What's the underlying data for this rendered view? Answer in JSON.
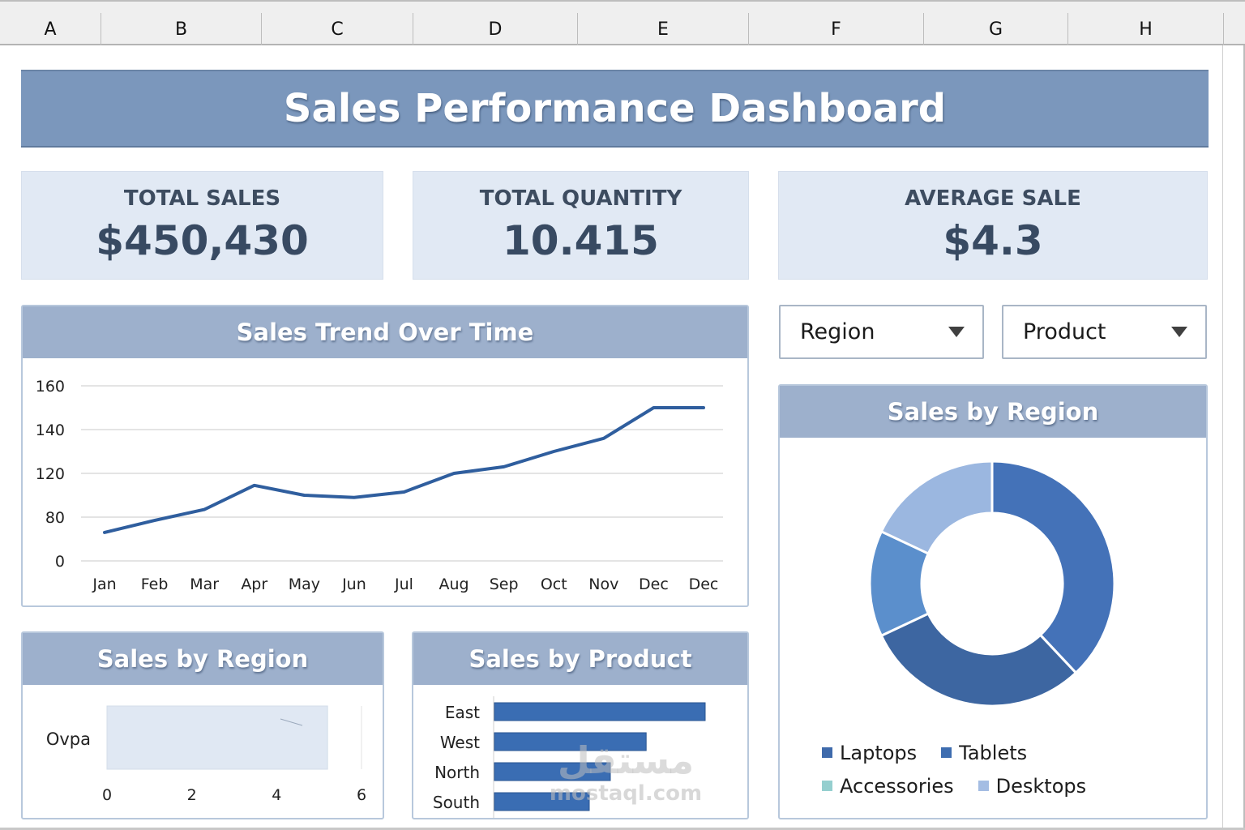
{
  "spreadsheet": {
    "columns": [
      "A",
      "B",
      "C",
      "D",
      "E",
      "F",
      "G",
      "H"
    ]
  },
  "dashboard": {
    "title": "Sales Performance Dashboard",
    "colors": {
      "banner": "#7b97bc",
      "panel_header": "#9db0cc",
      "kpi_background": "#e1e9f4",
      "kpi_text": "#384a62",
      "line": "#2f5e9e",
      "bar": "#3a6db3"
    },
    "kpis": [
      {
        "label": "TOTAL SALES",
        "value": "$450,430"
      },
      {
        "label": "TOTAL QUANTITY",
        "value": "10.415"
      },
      {
        "label": "AVERAGE SALE",
        "value": "$4.3"
      }
    ],
    "filters": {
      "region": {
        "label": "Region",
        "icon": "caret-down-icon"
      },
      "product": {
        "label": "Product",
        "icon": "caret-down-icon"
      }
    },
    "watermark": {
      "arabic": "مستقل",
      "latin": "mostaql.com"
    }
  },
  "chart_data": [
    {
      "id": "sales-trend",
      "type": "line",
      "title": "Sales Trend Over Time",
      "categories": [
        "Jan",
        "Feb",
        "Mar",
        "Apr",
        "May",
        "Jun",
        "Jul",
        "Aug",
        "Sep",
        "Oct",
        "Nov",
        "Dec",
        "Dec"
      ],
      "series": [
        {
          "name": "Sales",
          "values": [
            52,
            74,
            87,
            109,
            100,
            98,
            103,
            120,
            123,
            130,
            136,
            150,
            150
          ],
          "color": "#2f5e9e"
        }
      ],
      "y_ticks": [
        0,
        80,
        120,
        140,
        160
      ],
      "ylim": [
        0,
        160
      ],
      "xlabel": "",
      "ylabel": "",
      "grid": true,
      "legend": "none"
    },
    {
      "id": "sales-by-region-bar",
      "type": "bar",
      "orientation": "horizontal",
      "title": "Sales by Region",
      "categories": [
        "Ovpa"
      ],
      "values": [
        5.2
      ],
      "x_ticks": [
        0,
        2,
        4,
        6
      ],
      "xlim": [
        0,
        6
      ],
      "bar_color": "#e0e8f3",
      "grid": true,
      "legend": "none"
    },
    {
      "id": "sales-by-product",
      "type": "bar",
      "orientation": "horizontal",
      "title": "Sales by Product",
      "categories": [
        "East",
        "West",
        "North",
        "South"
      ],
      "values": [
        100,
        72,
        55,
        45
      ],
      "xlim": [
        0,
        100
      ],
      "axis_labels_shown": false,
      "bar_color": "#3a6db3",
      "grid": false,
      "legend": "none"
    },
    {
      "id": "sales-by-region-donut",
      "type": "pie",
      "variant": "donut",
      "title": "Sales by Region",
      "slices": [
        {
          "label": "Laptops",
          "value": 38,
          "color": "#4472b8"
        },
        {
          "label": "Tablets",
          "value": 30,
          "color": "#3d66a1"
        },
        {
          "label": "",
          "value": 14,
          "color": "#5b8fcc"
        },
        {
          "label": "Desktops",
          "value": 18,
          "color": "#9bb7e0"
        }
      ],
      "legend": {
        "position": "bottom",
        "items": [
          {
            "label": "Laptops",
            "color": "#3f6aab"
          },
          {
            "label": "Tablets",
            "color": "#3e6db0"
          },
          {
            "label": "Accessories",
            "color": "#95cfcf"
          },
          {
            "label": "Desktops",
            "color": "#a4bde3"
          }
        ]
      }
    }
  ]
}
